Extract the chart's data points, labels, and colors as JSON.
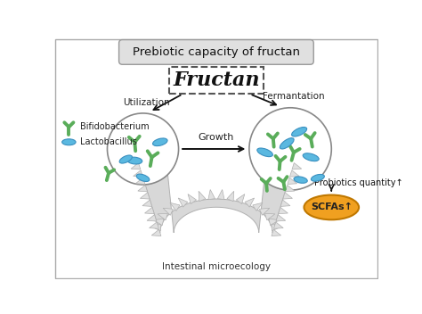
{
  "title": "Prebiotic capacity of fructan",
  "fructan_label": "Fructan",
  "utilization_label": "Utilization",
  "fermentation_label": "Fermantation",
  "growth_label": "Growth",
  "probiotics_label": "Probiotics quantity↑",
  "scfas_label": "SCFAs↑",
  "intestinal_label": "Intestinal microecology",
  "legend_bifido": "Bifidobacterium",
  "legend_lacto": "Lactobacillus",
  "bg_color": "#ffffff",
  "arrow_color": "#111111",
  "bifido_color": "#5aad5a",
  "lacto_color": "#5ab8e0",
  "lacto_edge": "#3a90c0",
  "scfas_fill": "#f0a020",
  "scfas_edge": "#c07800",
  "intestine_fill": "#d8d8d8",
  "intestine_edge": "#b0b0b0",
  "spike_fill": "#e0e0e0",
  "spike_edge": "#b0b0b0"
}
